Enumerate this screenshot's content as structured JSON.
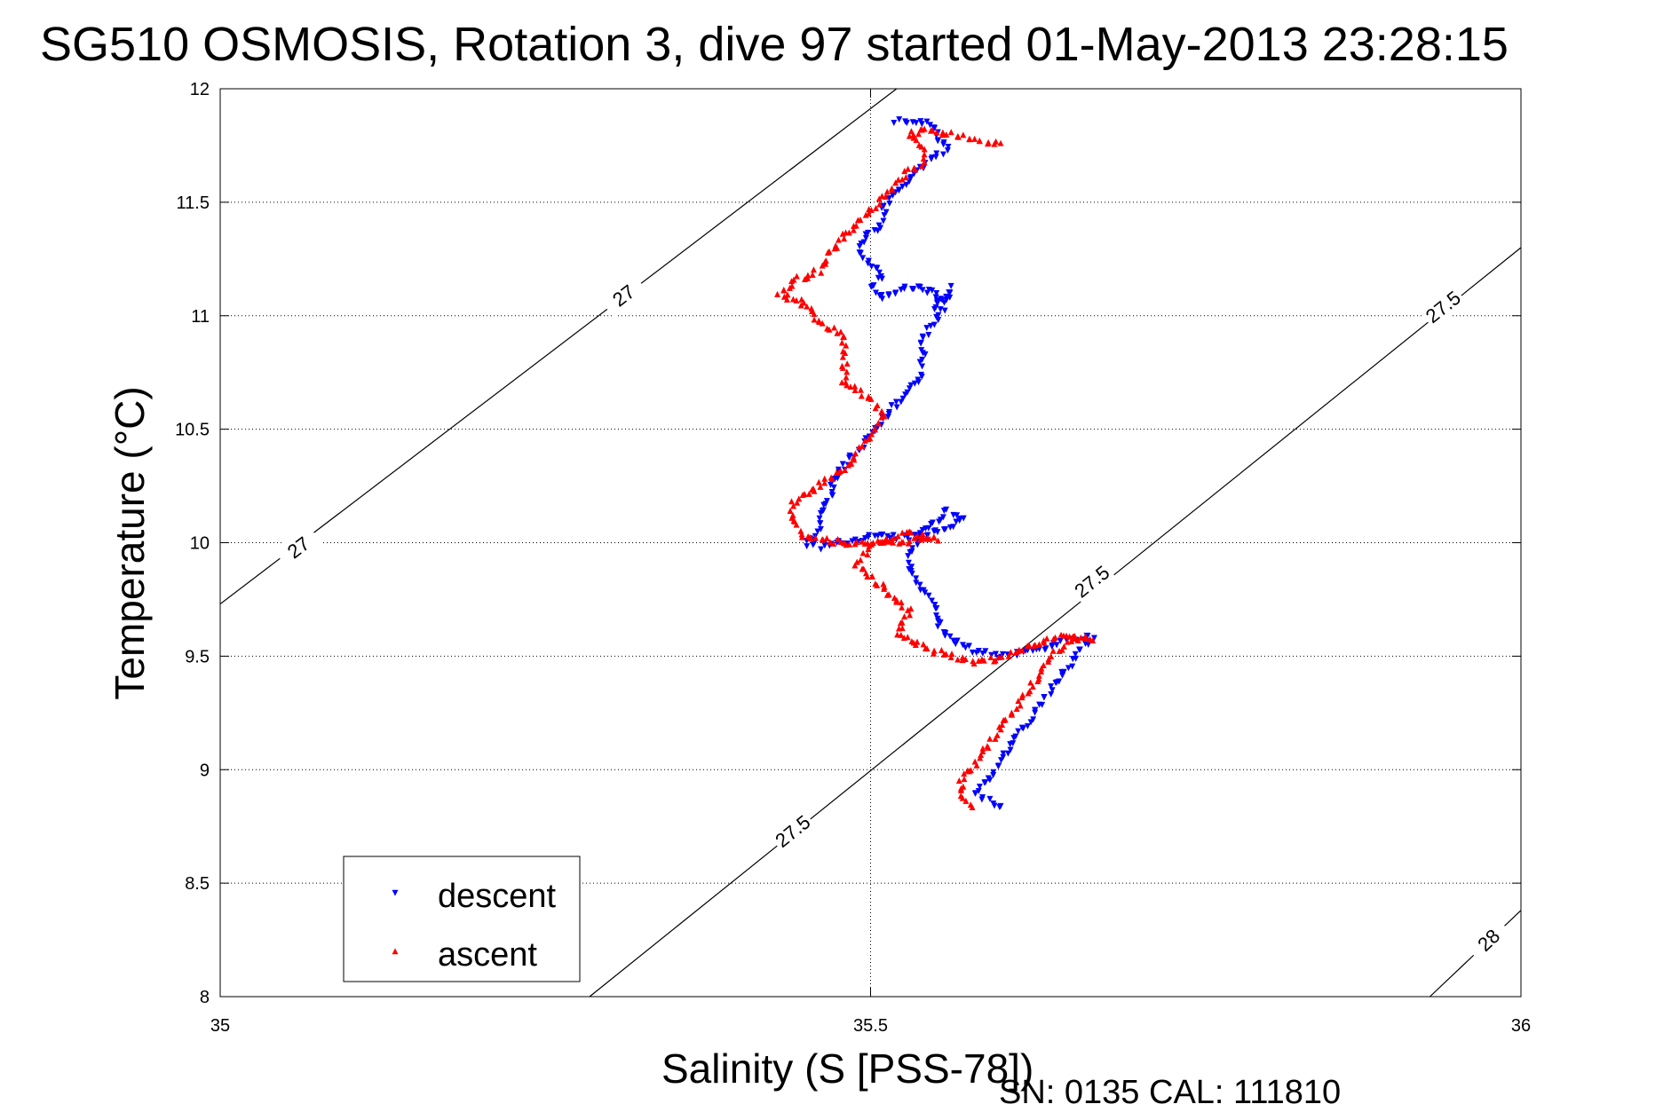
{
  "chart_data": {
    "type": "scatter",
    "title": "SG510 OSMOSIS, Rotation 3, dive 97 started 01-May-2013 23:28:15",
    "xlabel": "Salinity (S [PSS-78])",
    "ylabel": "Temperature (°C)",
    "xlim": [
      35,
      36
    ],
    "ylim": [
      8,
      12
    ],
    "x_ticks": [
      "35",
      "35.5",
      "36"
    ],
    "y_ticks": [
      "8",
      "8.5",
      "9",
      "9.5",
      "10",
      "10.5",
      "11",
      "11.5",
      "12"
    ],
    "grid": true,
    "legend_position": "bottom-left",
    "series": [
      {
        "name": "descent",
        "color": "#0000ff",
        "marker": "triangle-down",
        "path": [
          [
            35.52,
            11.86
          ],
          [
            35.54,
            11.85
          ],
          [
            35.55,
            11.83
          ],
          [
            35.55,
            11.78
          ],
          [
            35.56,
            11.74
          ],
          [
            35.55,
            11.7
          ],
          [
            35.54,
            11.66
          ],
          [
            35.53,
            11.6
          ],
          [
            35.52,
            11.55
          ],
          [
            35.51,
            11.48
          ],
          [
            35.51,
            11.42
          ],
          [
            35.5,
            11.36
          ],
          [
            35.49,
            11.3
          ],
          [
            35.5,
            11.24
          ],
          [
            35.51,
            11.18
          ],
          [
            35.5,
            11.12
          ],
          [
            35.51,
            11.08
          ],
          [
            35.53,
            11.13
          ],
          [
            35.55,
            11.1
          ],
          [
            35.55,
            11.03
          ],
          [
            35.56,
            11.12
          ],
          [
            35.56,
            11.06
          ],
          [
            35.55,
            10.98
          ],
          [
            35.54,
            10.9
          ],
          [
            35.54,
            10.82
          ],
          [
            35.54,
            10.75
          ],
          [
            35.53,
            10.68
          ],
          [
            35.52,
            10.62
          ],
          [
            35.51,
            10.55
          ],
          [
            35.5,
            10.48
          ],
          [
            35.49,
            10.4
          ],
          [
            35.48,
            10.34
          ],
          [
            35.47,
            10.26
          ],
          [
            35.47,
            10.2
          ],
          [
            35.46,
            10.12
          ],
          [
            35.46,
            10.06
          ],
          [
            35.45,
            10.0
          ],
          [
            35.46,
            9.98
          ],
          [
            35.48,
            10.0
          ],
          [
            35.5,
            10.03
          ],
          [
            35.53,
            10.02
          ],
          [
            35.55,
            10.05
          ],
          [
            35.57,
            10.1
          ],
          [
            35.56,
            10.14
          ],
          [
            35.54,
            10.05
          ],
          [
            35.53,
            9.95
          ],
          [
            35.53,
            9.88
          ],
          [
            35.54,
            9.8
          ],
          [
            35.55,
            9.72
          ],
          [
            35.55,
            9.65
          ],
          [
            35.56,
            9.58
          ],
          [
            35.58,
            9.52
          ],
          [
            35.6,
            9.5
          ],
          [
            35.62,
            9.52
          ],
          [
            35.64,
            9.55
          ],
          [
            35.66,
            9.58
          ],
          [
            35.67,
            9.58
          ],
          [
            35.66,
            9.52
          ],
          [
            35.65,
            9.44
          ],
          [
            35.64,
            9.36
          ],
          [
            35.63,
            9.28
          ],
          [
            35.62,
            9.2
          ],
          [
            35.61,
            9.12
          ],
          [
            35.6,
            9.04
          ],
          [
            35.59,
            8.96
          ],
          [
            35.58,
            8.9
          ],
          [
            35.59,
            8.86
          ],
          [
            35.6,
            8.84
          ]
        ]
      },
      {
        "name": "ascent",
        "color": "#ff0000",
        "marker": "triangle-up",
        "path": [
          [
            35.58,
            8.84
          ],
          [
            35.57,
            8.88
          ],
          [
            35.57,
            8.95
          ],
          [
            35.58,
            9.02
          ],
          [
            35.59,
            9.1
          ],
          [
            35.6,
            9.18
          ],
          [
            35.61,
            9.26
          ],
          [
            35.62,
            9.34
          ],
          [
            35.63,
            9.42
          ],
          [
            35.64,
            9.5
          ],
          [
            35.65,
            9.56
          ],
          [
            35.67,
            9.58
          ],
          [
            35.65,
            9.59
          ],
          [
            35.63,
            9.56
          ],
          [
            35.61,
            9.51
          ],
          [
            35.58,
            9.47
          ],
          [
            35.55,
            9.52
          ],
          [
            35.52,
            9.6
          ],
          [
            35.53,
            9.7
          ],
          [
            35.51,
            9.8
          ],
          [
            35.49,
            9.9
          ],
          [
            35.5,
            10.0
          ],
          [
            35.53,
            10.04
          ],
          [
            35.55,
            10.02
          ],
          [
            35.52,
            10.0
          ],
          [
            35.48,
            10.0
          ],
          [
            35.45,
            10.02
          ],
          [
            35.44,
            10.1
          ],
          [
            35.44,
            10.18
          ],
          [
            35.46,
            10.25
          ],
          [
            35.48,
            10.32
          ],
          [
            35.49,
            10.4
          ],
          [
            35.5,
            10.48
          ],
          [
            35.51,
            10.56
          ],
          [
            35.5,
            10.64
          ],
          [
            35.48,
            10.7
          ],
          [
            35.48,
            10.8
          ],
          [
            35.48,
            10.9
          ],
          [
            35.46,
            10.98
          ],
          [
            35.45,
            11.05
          ],
          [
            35.43,
            11.1
          ],
          [
            35.44,
            11.15
          ],
          [
            35.46,
            11.2
          ],
          [
            35.47,
            11.28
          ],
          [
            35.48,
            11.35
          ],
          [
            35.49,
            11.4
          ],
          [
            35.5,
            11.46
          ],
          [
            35.51,
            11.52
          ],
          [
            35.52,
            11.58
          ],
          [
            35.53,
            11.64
          ],
          [
            35.54,
            11.68
          ],
          [
            35.54,
            11.74
          ],
          [
            35.53,
            11.8
          ],
          [
            35.54,
            11.82
          ],
          [
            35.56,
            11.8
          ],
          [
            35.58,
            11.78
          ],
          [
            35.6,
            11.76
          ]
        ]
      }
    ],
    "density_contours": [
      {
        "label": "27",
        "points": [
          [
            35.0,
            9.73
          ],
          [
            35.52,
            12.0
          ]
        ],
        "label_positions": [
          [
            35.06,
            9.98
          ],
          [
            35.31,
            11.09
          ]
        ]
      },
      {
        "label": "27.5",
        "points": [
          [
            35.284,
            8.0
          ],
          [
            36.0,
            11.3
          ]
        ],
        "label_positions": [
          [
            35.44,
            8.73
          ],
          [
            35.67,
            9.83
          ],
          [
            35.94,
            11.04
          ]
        ]
      },
      {
        "label": "28",
        "points": [
          [
            35.93,
            8.0
          ],
          [
            36.0,
            8.38
          ]
        ],
        "label_positions": [
          [
            35.975,
            8.25
          ]
        ]
      }
    ]
  },
  "footer_text": "SN: 0135  CAL: 111810"
}
